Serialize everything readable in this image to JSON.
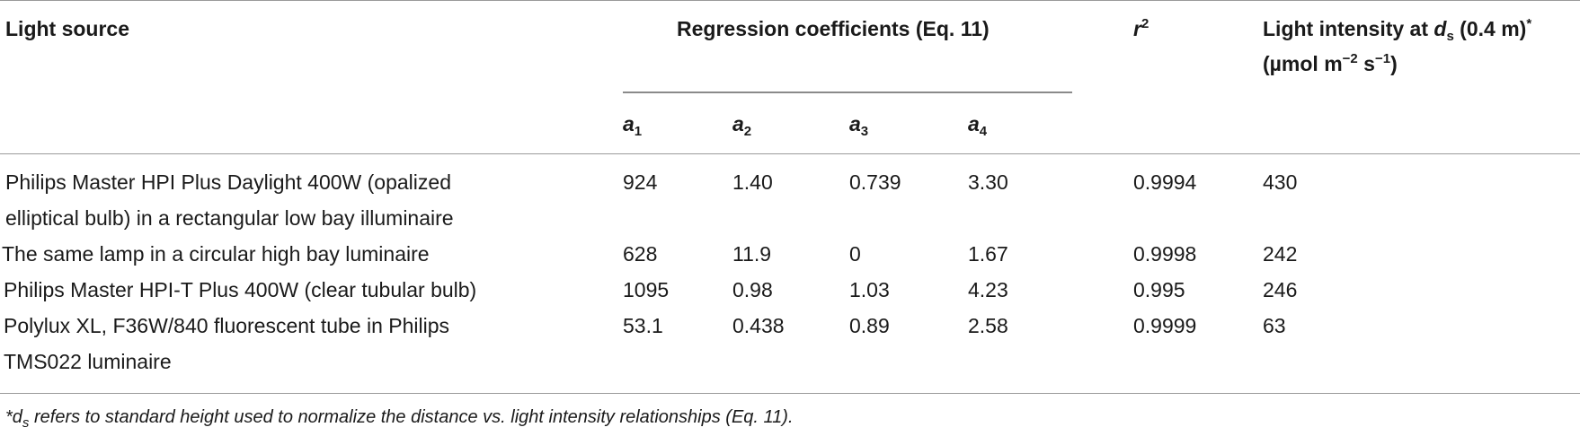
{
  "table": {
    "headers": {
      "light_source": "Light source",
      "regression": "Regression coefficients (Eq. 11)",
      "r2_base": "r",
      "r2_sup": "2",
      "intensity_line1_a": "Light intensity at ",
      "intensity_line1_d": "d",
      "intensity_line1_sub": "s",
      "intensity_line1_b": " (0.4 m)",
      "intensity_line1_sup": "*",
      "intensity_line2_a": "(µmol m",
      "intensity_line2_sup1": "−2",
      "intensity_line2_b": " s",
      "intensity_line2_sup2": "−1",
      "intensity_line2_c": ")",
      "coef": [
        {
          "base": "a",
          "sub": "1"
        },
        {
          "base": "a",
          "sub": "2"
        },
        {
          "base": "a",
          "sub": "3"
        },
        {
          "base": "a",
          "sub": "4"
        }
      ]
    },
    "rows": [
      {
        "source_line1": "Philips Master HPI Plus Daylight 400W (opalized",
        "source_line2": "elliptical bulb) in a rectangular low bay illuminaire",
        "a1": "924",
        "a2": "1.40",
        "a3": "0.739",
        "a4": "3.30",
        "r2": "0.9994",
        "intensity": "430"
      },
      {
        "source_line1": "The same lamp in a circular high bay luminaire",
        "source_line2": "",
        "a1": "628",
        "a2": "11.9",
        "a3": "0",
        "a4": "1.67",
        "r2": "0.9998",
        "intensity": "242"
      },
      {
        "source_line1": "Philips Master HPI-T Plus 400W (clear tubular bulb)",
        "source_line2": "",
        "a1": "1095",
        "a2": "0.98",
        "a3": "1.03",
        "a4": "4.23",
        "r2": "0.995",
        "intensity": "246"
      },
      {
        "source_line1": "Polylux XL, F36W/840 fluorescent tube in Philips",
        "source_line2": "TMS022 luminaire",
        "a1": "53.1",
        "a2": "0.438",
        "a3": "0.89",
        "a4": "2.58",
        "r2": "0.9999",
        "intensity": "63"
      }
    ],
    "footnote_star": "*",
    "footnote_d": "d",
    "footnote_sub": "s",
    "footnote_text": " refers to standard height used to normalize the distance vs. light intensity relationships (Eq. 11)."
  }
}
